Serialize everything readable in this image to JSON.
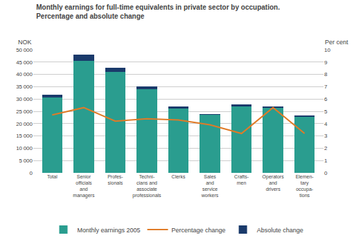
{
  "chart_data": {
    "type": "bar",
    "title": "Monthly earnings for full-time equivalents in private sector by occupation.",
    "subtitle": "Percentage and absolute change",
    "ylabel": "NOK",
    "y2label": "Per cent",
    "categories": [
      "Total",
      "Senior\nofficials\nand\nmanagers",
      "Profes-\nsionals",
      "Techni-\ncians and\nassociate\nprofessionals",
      "Clerks",
      "Sales\nand\nservice\nworkers",
      "Crafts-\nmen",
      "Operators\nand\ndrivers",
      "Elemen-\ntary\noccupa-\ntions"
    ],
    "series": [
      {
        "name": "Monthly earnings 2005",
        "type": "bar",
        "color": "#2a9d8f",
        "values": [
          30500,
          45500,
          41000,
          34000,
          26200,
          23500,
          27000,
          26500,
          22700
        ]
      },
      {
        "name": "Percentage change",
        "type": "line",
        "axis": "y2",
        "color": "#e07b27",
        "values": [
          4.7,
          5.3,
          4.2,
          4.4,
          4.3,
          3.9,
          3.2,
          5.3,
          3.2
        ]
      },
      {
        "name": "Absolute change",
        "type": "bar",
        "color": "#1a3a6b",
        "values": [
          1300,
          2500,
          1800,
          1200,
          700,
          500,
          800,
          600,
          500
        ]
      }
    ],
    "stacked": true,
    "ylim": [
      0,
      50000
    ],
    "yticks": [
      0,
      {
        "value": 5000,
        "label": "5 000"
      },
      {
        "value": 10000,
        "label": "10 000"
      },
      {
        "value": 15000,
        "label": "15 000"
      },
      {
        "value": 20000,
        "label": "20 000"
      },
      {
        "value": 25000,
        "label": "25 000"
      },
      {
        "value": 30000,
        "label": "30 000"
      },
      {
        "value": 35000,
        "label": "35 000"
      },
      {
        "value": 40000,
        "label": "40 000"
      },
      {
        "value": 45000,
        "label": "45 000"
      },
      {
        "value": 50000,
        "label": "50 000"
      }
    ],
    "y2lim": [
      0,
      10
    ],
    "y2ticks": [
      0,
      1,
      2,
      3,
      4,
      5,
      6,
      7,
      8,
      9,
      10
    ],
    "grid": true,
    "legend": "lower center"
  }
}
